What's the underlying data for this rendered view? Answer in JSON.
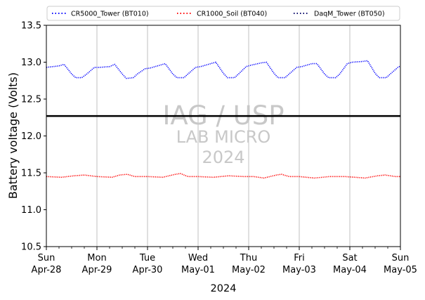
{
  "chart_data": {
    "type": "line",
    "title": "",
    "xlabel": "2024",
    "ylabel": "Battery voltage (Volts)",
    "ylim": [
      10.5,
      13.5
    ],
    "y_ticks": [
      "10.5",
      "11.0",
      "11.5",
      "12.0",
      "12.5",
      "13.0",
      "13.5"
    ],
    "x_ticks": [
      {
        "day": "Sun",
        "date": "Apr-28"
      },
      {
        "day": "Mon",
        "date": "Apr-29"
      },
      {
        "day": "Tue",
        "date": "Apr-30"
      },
      {
        "day": "Wed",
        "date": "May-01"
      },
      {
        "day": "Thu",
        "date": "May-02"
      },
      {
        "day": "Fri",
        "date": "May-03"
      },
      {
        "day": "Sat",
        "date": "May-04"
      },
      {
        "day": "Sun",
        "date": "May-05"
      }
    ],
    "grid": "vertical",
    "legend_position": "top",
    "reference_line": {
      "y": 12.27,
      "color": "#000000"
    },
    "watermark": {
      "line1": "IAG / USP",
      "line2": "LAB MICRO",
      "line3": "2024"
    },
    "series": [
      {
        "name": "CR5000_Tower (BT010)",
        "color": "#0000ff",
        "x_days": [
          0,
          0.25,
          0.35,
          0.5,
          0.58,
          0.7,
          0.8,
          0.95,
          1.05,
          1.25,
          1.35,
          1.5,
          1.58,
          1.72,
          1.8,
          1.95,
          2.05,
          2.25,
          2.35,
          2.5,
          2.58,
          2.72,
          2.8,
          2.95,
          3.05,
          3.25,
          3.35,
          3.5,
          3.58,
          3.72,
          3.8,
          3.95,
          4.05,
          4.25,
          4.35,
          4.5,
          4.58,
          4.72,
          4.8,
          4.95,
          5.05,
          5.25,
          5.35,
          5.5,
          5.58,
          5.72,
          5.8,
          5.95,
          6.05,
          6.25,
          6.35,
          6.5,
          6.58,
          6.72,
          6.8,
          6.95,
          7.0
        ],
        "values": [
          12.93,
          12.95,
          12.97,
          12.84,
          12.79,
          12.79,
          12.84,
          12.93,
          12.93,
          12.94,
          12.97,
          12.84,
          12.78,
          12.79,
          12.84,
          12.91,
          12.92,
          12.96,
          12.98,
          12.84,
          12.79,
          12.79,
          12.84,
          12.93,
          12.94,
          12.98,
          13.0,
          12.85,
          12.79,
          12.79,
          12.84,
          12.94,
          12.96,
          12.99,
          13.0,
          12.85,
          12.79,
          12.79,
          12.84,
          12.93,
          12.94,
          12.98,
          12.98,
          12.84,
          12.79,
          12.79,
          12.84,
          12.98,
          13.0,
          13.01,
          13.02,
          12.85,
          12.79,
          12.79,
          12.84,
          12.93,
          12.95
        ]
      },
      {
        "name": "CR1000_Soil (BT040)",
        "color": "#ff0000",
        "x_days": [
          0,
          0.3,
          0.55,
          0.75,
          1.0,
          1.3,
          1.45,
          1.6,
          1.75,
          2.0,
          2.3,
          2.55,
          2.65,
          2.8,
          3.0,
          3.3,
          3.6,
          3.9,
          4.1,
          4.3,
          4.55,
          4.65,
          4.8,
          5.0,
          5.3,
          5.6,
          5.9,
          6.1,
          6.3,
          6.55,
          6.7,
          6.9,
          7.0
        ],
        "values": [
          11.45,
          11.44,
          11.46,
          11.47,
          11.45,
          11.44,
          11.47,
          11.48,
          11.45,
          11.45,
          11.44,
          11.48,
          11.49,
          11.45,
          11.45,
          11.44,
          11.46,
          11.45,
          11.45,
          11.43,
          11.47,
          11.48,
          11.45,
          11.45,
          11.43,
          11.45,
          11.45,
          11.44,
          11.43,
          11.46,
          11.47,
          11.45,
          11.45
        ]
      },
      {
        "name": "DaqM_Tower (BT050)",
        "color": "#0b0b6b",
        "x_days": [],
        "values": []
      }
    ]
  }
}
